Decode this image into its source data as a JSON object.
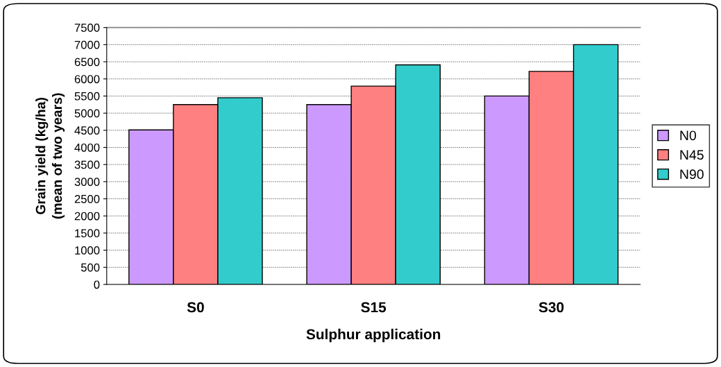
{
  "chart_data": {
    "type": "bar",
    "xlabel": "Sulphur application",
    "ylabel": "Grain yield (kg/ha)\n(mean of two years)",
    "categories": [
      "S0",
      "S15",
      "S30"
    ],
    "series": [
      {
        "name": "N0",
        "color": "#cc99ff",
        "values": [
          4510,
          5250,
          5500
        ]
      },
      {
        "name": "N45",
        "color": "#ff8080",
        "values": [
          5250,
          5790,
          6220
        ]
      },
      {
        "name": "N90",
        "color": "#33cccc",
        "values": [
          5450,
          6410,
          7000
        ]
      }
    ],
    "ylim": [
      0,
      7500
    ],
    "yticks": [
      0,
      500,
      1000,
      1500,
      2000,
      2500,
      3000,
      3500,
      4000,
      4500,
      5000,
      5500,
      6000,
      6500,
      7000,
      7500
    ],
    "grid": "y",
    "legend": "right"
  }
}
